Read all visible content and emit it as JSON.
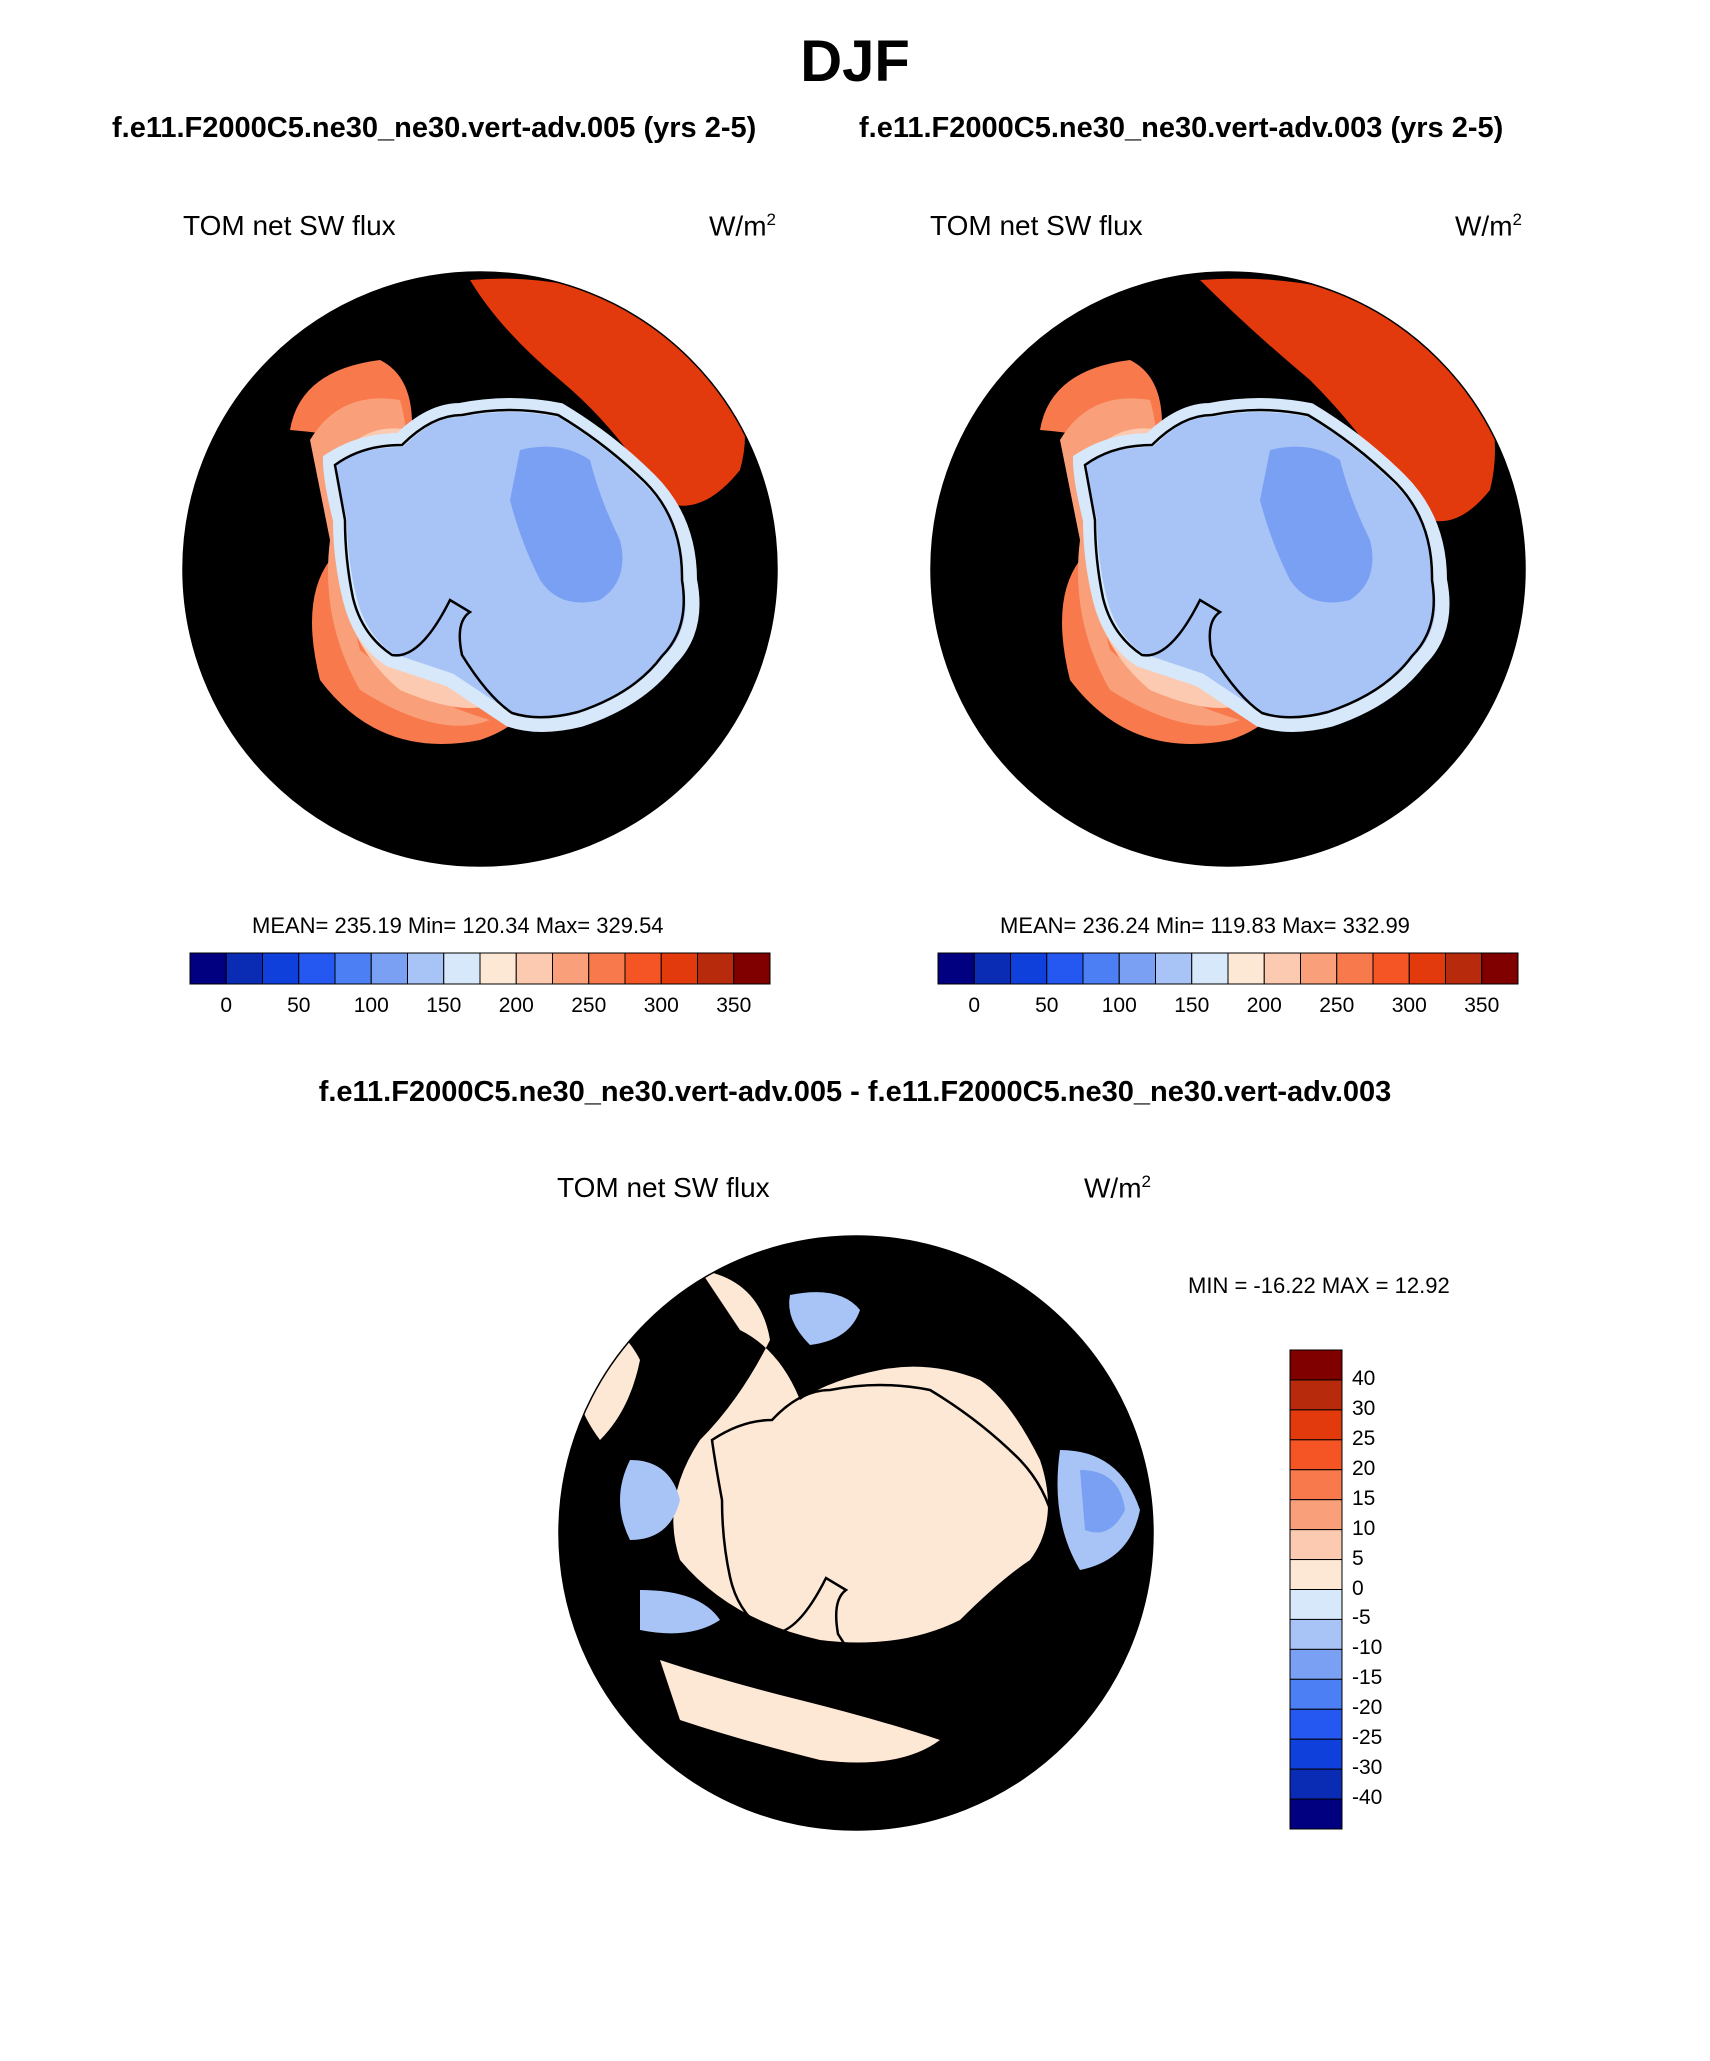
{
  "title": "DJF",
  "case_titles": [
    "f.e11.F2000C5.ne30_ne30.vert-adv.005 (yrs 2-5)",
    "f.e11.F2000C5.ne30_ne30.vert-adv.003 (yrs 2-5)"
  ],
  "diff_title": "f.e11.F2000C5.ne30_ne30.vert-adv.005 - f.e11.F2000C5.ne30_ne30.vert-adv.003",
  "panels": [
    {
      "variable": "TOM net SW flux",
      "units_base": "W/m",
      "units_exp": "2",
      "stats": "MEAN= 235.19  Min= 120.34  Max= 329.54"
    },
    {
      "variable": "TOM net SW flux",
      "units_base": "W/m",
      "units_exp": "2",
      "stats": "MEAN= 236.24  Min= 119.83  Max= 332.99"
    },
    {
      "variable": "TOM net SW flux",
      "units_base": "W/m",
      "units_exp": "2",
      "stats": "MIN = -16.22 MAX =  12.92"
    }
  ],
  "colorbar": {
    "colors": [
      "#000080",
      "#0a2bb4",
      "#1040dc",
      "#2458f0",
      "#4c7ef4",
      "#7aa0f4",
      "#a8c4f6",
      "#d6e8fa",
      "#fde8d6",
      "#fccab0",
      "#f9a07a",
      "#f87a4c",
      "#f55424",
      "#e23a0c",
      "#b82a0c",
      "#800000"
    ],
    "ticks": [
      "0",
      "50",
      "100",
      "150",
      "200",
      "250",
      "300",
      "350"
    ]
  },
  "diff_colorbar": {
    "colors": [
      "#800000",
      "#b82a0c",
      "#e23a0c",
      "#f55424",
      "#f87a4c",
      "#f9a07a",
      "#fccab0",
      "#fde8d6",
      "#d6e8fa",
      "#a8c4f6",
      "#7aa0f4",
      "#4c7ef4",
      "#2458f0",
      "#1040dc",
      "#0a2bb4",
      "#000080"
    ],
    "ticks": [
      "40",
      "30",
      "25",
      "20",
      "15",
      "10",
      "5",
      "0",
      "-5",
      "-10",
      "-15",
      "-20",
      "-25",
      "-30",
      "-40"
    ]
  },
  "map_colors": {
    "ocean_high": "#f55424",
    "ocean_very_high": "#e23a0c",
    "ocean_mid": "#f87a4c",
    "ocean_light": "#f9a07a",
    "ocean_pale": "#fccab0",
    "ice_pale": "#fde8d6",
    "land_edge": "#d6e8fa",
    "land": "#a8c4f6",
    "land_dark": "#7aa0f4",
    "diff_bg": "#d6e8fa",
    "diff_pos": "#fde8d6",
    "diff_neg": "#a8c4f6",
    "diff_neg_strong": "#7aa0f4"
  }
}
